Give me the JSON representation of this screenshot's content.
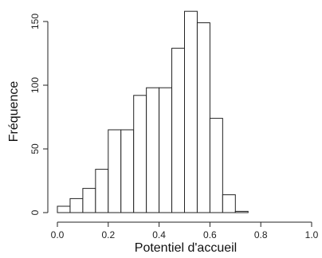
{
  "chart_data": {
    "type": "bar",
    "title": "",
    "xlabel": "Potentiel d'accueil",
    "ylabel": "Fréquence",
    "bin_width": 0.05,
    "bins": [
      {
        "start": 0.0,
        "end": 0.05,
        "value": 5
      },
      {
        "start": 0.05,
        "end": 0.1,
        "value": 11
      },
      {
        "start": 0.1,
        "end": 0.15,
        "value": 19
      },
      {
        "start": 0.15,
        "end": 0.2,
        "value": 34
      },
      {
        "start": 0.2,
        "end": 0.25,
        "value": 65
      },
      {
        "start": 0.25,
        "end": 0.3,
        "value": 65
      },
      {
        "start": 0.3,
        "end": 0.35,
        "value": 92
      },
      {
        "start": 0.35,
        "end": 0.4,
        "value": 98
      },
      {
        "start": 0.4,
        "end": 0.45,
        "value": 98
      },
      {
        "start": 0.45,
        "end": 0.5,
        "value": 129
      },
      {
        "start": 0.5,
        "end": 0.55,
        "value": 158
      },
      {
        "start": 0.55,
        "end": 0.6,
        "value": 149
      },
      {
        "start": 0.6,
        "end": 0.65,
        "value": 74
      },
      {
        "start": 0.65,
        "end": 0.7,
        "value": 14
      },
      {
        "start": 0.7,
        "end": 0.75,
        "value": 1
      }
    ],
    "xlim": [
      0,
      1
    ],
    "ylim": [
      0,
      160
    ],
    "x_ticks": [
      0.0,
      0.2,
      0.4,
      0.6,
      0.8,
      1.0
    ],
    "x_tick_labels": [
      "0.0",
      "0.2",
      "0.4",
      "0.6",
      "0.8",
      "1.0"
    ],
    "y_ticks": [
      0,
      50,
      100,
      150
    ],
    "y_tick_labels": [
      "0",
      "50",
      "100",
      "150"
    ],
    "grid": false,
    "colors": {
      "bar_fill": "#ffffff",
      "bar_stroke": "#222222"
    }
  }
}
